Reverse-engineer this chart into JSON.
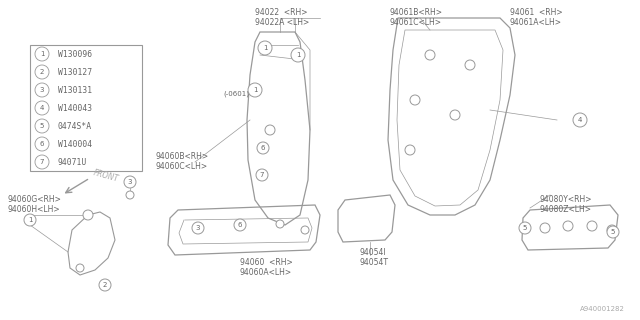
{
  "bg_color": "#ffffff",
  "line_color": "#999999",
  "text_color": "#666666",
  "legend_items": [
    {
      "num": "1",
      "part": "W130096"
    },
    {
      "num": "2",
      "part": "W130127"
    },
    {
      "num": "3",
      "part": "W130131"
    },
    {
      "num": "4",
      "part": "W140043"
    },
    {
      "num": "5",
      "part": "0474S*A"
    },
    {
      "num": "6",
      "part": "W140004"
    },
    {
      "num": "7",
      "part": "94071U"
    }
  ],
  "diagram_id": "A940001282",
  "label_fontsize": 5.5,
  "legend_fontsize": 5.8
}
